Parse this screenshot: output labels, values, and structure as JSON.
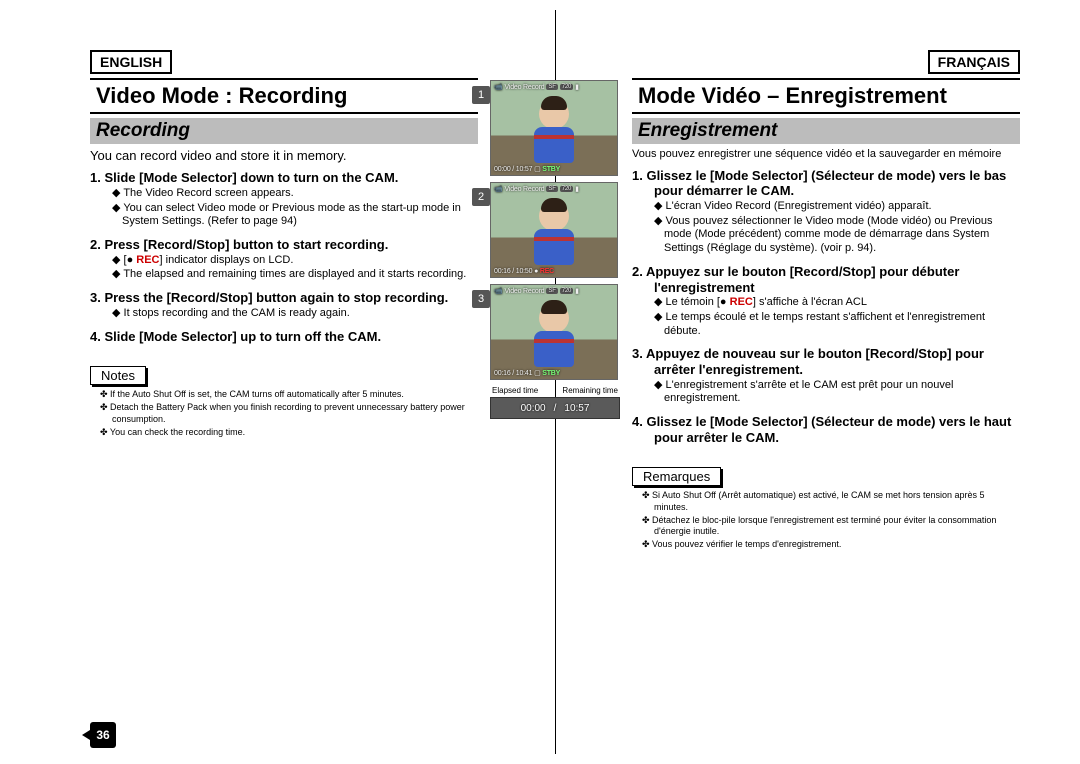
{
  "english": {
    "language": "ENGLISH",
    "title": "Video Mode : Recording",
    "subtitle": "Recording",
    "intro": "You can record video and store it in memory.",
    "steps": [
      {
        "num": "1.",
        "head": "Slide [Mode Selector] down to turn on the CAM.",
        "subs": [
          "The Video Record screen appears.",
          "You can select Video mode or Previous mode as the start-up mode in System Settings. (Refer to page 94)"
        ]
      },
      {
        "num": "2.",
        "head": "Press [Record/Stop] button to start recording.",
        "subs_html": [
          "[● <span class='redtxt'>REC</span>] indicator displays on LCD.",
          "The elapsed and remaining times are displayed and it starts recording."
        ]
      },
      {
        "num": "3.",
        "head": "Press the [Record/Stop] button again to stop recording.",
        "subs": [
          "It stops recording and the CAM is ready again."
        ]
      },
      {
        "num": "4.",
        "head": "Slide [Mode Selector] up to turn off the CAM.",
        "subs": []
      }
    ],
    "notes_label": "Notes",
    "notes": [
      "If the Auto Shut Off is set, the CAM turns off automatically after 5 minutes.",
      "Detach the Battery Pack when you finish recording to prevent unnecessary battery power consumption.",
      "You can check the recording time."
    ]
  },
  "french": {
    "language": "FRANÇAIS",
    "title": "Mode Vidéo – Enregistrement",
    "subtitle": "Enregistrement",
    "intro": "Vous pouvez enregistrer une séquence vidéo et la sauvegarder en mémoire",
    "steps": [
      {
        "num": "1.",
        "head": "Glissez le [Mode Selector] (Sélecteur de mode) vers le bas pour démarrer le CAM.",
        "subs": [
          "L'écran Video Record (Enregistrement vidéo) apparaît.",
          "Vous pouvez sélectionner le Video mode (Mode vidéo) ou Previous mode (Mode précédent) comme mode de démarrage dans System Settings (Réglage du système). (voir p. 94)."
        ]
      },
      {
        "num": "2.",
        "head": "Appuyez sur le bouton [Record/Stop] pour débuter l'enregistrement",
        "subs_html": [
          "Le témoin [● <span class='redtxt'>REC</span>] s'affiche à l'écran ACL",
          "Le temps écoulé et le temps restant s'affichent et l'enregistrement débute."
        ]
      },
      {
        "num": "3.",
        "head": "Appuyez de nouveau sur le bouton [Record/Stop] pour arrêter l'enregistrement.",
        "subs": [
          "L'enregistrement s'arrête et le CAM est prêt pour un nouvel enregistrement."
        ]
      },
      {
        "num": "4.",
        "head": "Glissez le [Mode Selector] (Sélecteur de mode) vers le haut pour arrêter le CAM.",
        "subs": []
      }
    ],
    "notes_label": "Remarques",
    "notes": [
      "Si Auto Shut Off (Arrêt automatique) est activé, le CAM se met hors tension après 5 minutes.",
      "Détachez le bloc-pile lorsque l'enregistrement est terminé pour éviter la consommation d'énergie inutile.",
      "Vous pouvez vérifier le temps d'enregistrement."
    ]
  },
  "screenshots": [
    {
      "num": "1",
      "top_label": "Video Record",
      "time_l": "00:00",
      "time_r": "10:57",
      "status": "STBY",
      "status_class": "stby"
    },
    {
      "num": "2",
      "top_label": "Video Record",
      "time_l": "00:16",
      "time_r": "10:50",
      "status": "REC",
      "status_class": "rec"
    },
    {
      "num": "3",
      "top_label": "Video Record",
      "time_l": "00:16",
      "time_r": "10:41",
      "status": "STBY",
      "status_class": "stby"
    }
  ],
  "elapsed": {
    "left_label": "Elapsed time",
    "right_label": "Remaining time",
    "val_l": "00:00",
    "val_r": "10:57"
  },
  "page_number": "36"
}
